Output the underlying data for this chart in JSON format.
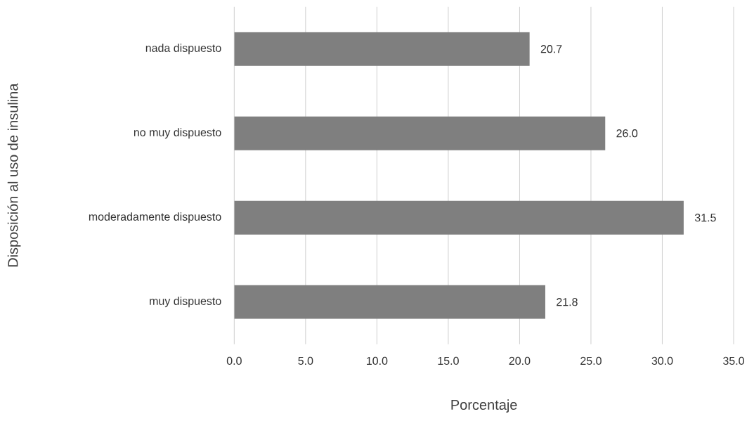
{
  "chart_data": {
    "type": "bar",
    "orientation": "horizontal",
    "xlabel": "Porcentaje",
    "ylabel": "Disposición al uso de insulina",
    "categories": [
      "nada dispuesto",
      "no muy dispuesto",
      "moderadamente dispuesto",
      "muy dispuesto"
    ],
    "values": [
      20.7,
      26.0,
      31.5,
      21.8
    ],
    "value_labels": [
      "20.7",
      "26.0",
      "31.5",
      "21.8"
    ],
    "color": "#7f7f7f",
    "xlim": [
      0,
      35
    ],
    "xticks": [
      {
        "value": 0,
        "label": "0.0"
      },
      {
        "value": 5,
        "label": "5.0"
      },
      {
        "value": 10,
        "label": "10.0"
      },
      {
        "value": 15,
        "label": "15.0"
      },
      {
        "value": 20,
        "label": "20.0"
      },
      {
        "value": 25,
        "label": "25.0"
      },
      {
        "value": 30,
        "label": "30.0"
      },
      {
        "value": 35,
        "label": "35.0"
      }
    ],
    "grid": "x"
  }
}
